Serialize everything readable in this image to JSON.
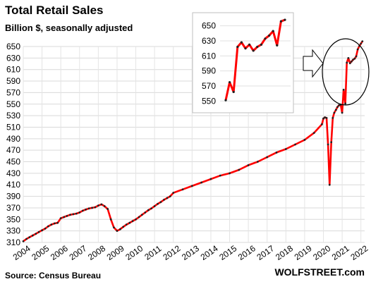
{
  "chart_data": {
    "type": "line",
    "title": "Total Retail Sales",
    "subtitle": "Billion $, seasonally adjusted",
    "source": "Source: Census Bureau",
    "brand": "WOLFSTREET.com",
    "ylim": [
      310,
      650
    ],
    "yticks": [
      "310",
      "330",
      "350",
      "370",
      "390",
      "410",
      "430",
      "450",
      "470",
      "490",
      "510",
      "530",
      "550",
      "570",
      "590",
      "610",
      "630",
      "650"
    ],
    "xticks": [
      "2004",
      "2005",
      "2006",
      "2007",
      "2008",
      "2009",
      "2010",
      "2011",
      "2012",
      "2013",
      "2014",
      "2015",
      "2016",
      "2017",
      "2018",
      "2019",
      "2020",
      "2021",
      "2022"
    ],
    "xlim": [
      2004.0,
      2022.2
    ],
    "grid": true,
    "line_color": "#ff0000",
    "marker_color": "#222222",
    "series": [
      {
        "x": [
          2004.0,
          2004.17,
          2004.33,
          2004.5,
          2004.67,
          2004.83,
          2005.0,
          2005.17,
          2005.33,
          2005.5,
          2005.67,
          2005.83,
          2006.0,
          2006.17,
          2006.33,
          2006.5,
          2006.67,
          2006.83,
          2007.0,
          2007.17,
          2007.33,
          2007.5,
          2007.67,
          2007.83,
          2008.0,
          2008.17,
          2008.33,
          2008.5,
          2008.67,
          2008.83,
          2009.0,
          2009.17,
          2009.33,
          2009.5,
          2009.67,
          2009.83,
          2010.0,
          2010.17,
          2010.33,
          2010.5,
          2010.67,
          2010.83,
          2011.0,
          2011.17,
          2011.33,
          2011.5,
          2011.67,
          2011.83,
          2012.0,
          2012.5,
          2013.0,
          2013.5,
          2014.0,
          2014.5,
          2015.0,
          2015.5,
          2016.0,
          2016.5,
          2017.0,
          2017.5,
          2018.0,
          2018.5,
          2019.0,
          2019.5,
          2019.92,
          2020.0,
          2020.08,
          2020.17,
          2020.25,
          2020.33,
          2020.42,
          2020.5,
          2020.58,
          2020.67,
          2020.75,
          2020.83,
          2020.92,
          2021.0,
          2021.08,
          2021.17,
          2021.25,
          2021.33,
          2021.42,
          2021.5,
          2021.58,
          2021.67,
          2021.75,
          2021.83,
          2021.92,
          2022.0,
          2022.08
        ],
        "values": [
          312,
          316,
          319,
          322,
          325,
          328,
          331,
          334,
          338,
          341,
          343,
          344,
          352,
          354,
          356,
          358,
          359,
          360,
          362,
          365,
          367,
          369,
          370,
          371,
          374,
          376,
          373,
          368,
          350,
          336,
          330,
          333,
          337,
          341,
          344,
          347,
          350,
          354,
          358,
          362,
          366,
          369,
          373,
          377,
          380,
          384,
          387,
          390,
          396,
          402,
          408,
          414,
          420,
          426,
          430,
          436,
          444,
          450,
          458,
          466,
          472,
          480,
          488,
          500,
          515,
          525,
          527,
          526,
          480,
          410,
          484,
          526,
          535,
          540,
          545,
          548,
          549,
          535,
          575,
          551,
          622,
          630,
          621,
          624,
          627,
          629,
          633,
          645,
          651,
          655,
          659
        ]
      }
    ],
    "inset": {
      "ylim": [
        540,
        660
      ],
      "yticks": [
        "550",
        "570",
        "590",
        "610",
        "630",
        "650"
      ],
      "values": [
        551,
        575,
        562,
        622,
        628,
        620,
        625,
        617,
        622,
        625,
        633,
        637,
        643,
        624,
        656,
        658
      ]
    }
  }
}
